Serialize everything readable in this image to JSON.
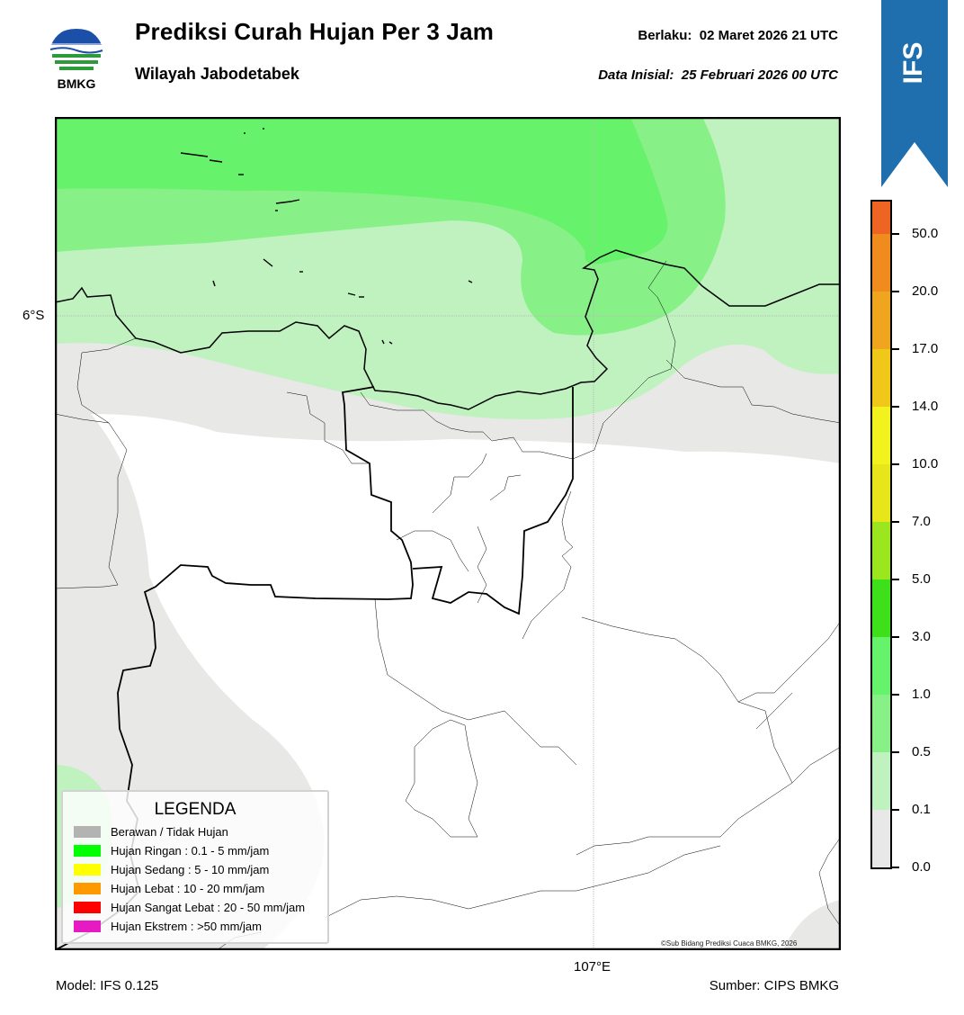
{
  "header": {
    "logo_text": "BMKG",
    "title": "Prediksi Curah Hujan Per 3 Jam",
    "subtitle": "Wilayah Jabodetabek",
    "valid_label": "Berlaku:",
    "valid_value": "02 Maret 2026 21 UTC",
    "init_label": "Data Inisial:",
    "init_value": "25 Februari 2026 00 UTC",
    "ribbon_text": "IFS"
  },
  "map": {
    "lat_label": "6°S",
    "lon_label": "107°E",
    "copyright": "©Sub Bidang Prediksi Cuaca BMKG, 2026"
  },
  "legend": {
    "title": "LEGENDA",
    "items": [
      {
        "label": "Berawan / Tidak Hujan",
        "color": "#b3b3b3"
      },
      {
        "label": "Hujan Ringan : 0.1 - 5 mm/jam",
        "color": "#00ff00"
      },
      {
        "label": "Hujan Sedang : 5 - 10 mm/jam",
        "color": "#ffff00"
      },
      {
        "label": "Hujan Lebat : 10 - 20 mm/jam",
        "color": "#ff9900"
      },
      {
        "label": "Hujan Sangat Lebat : 20 - 50 mm/jam",
        "color": "#ff0000"
      },
      {
        "label": "Hujan Ekstrem : >50 mm/jam",
        "color": "#e619c3"
      }
    ]
  },
  "colorbar": {
    "ticks": [
      "0.0",
      "0.1",
      "0.5",
      "1.0",
      "3.0",
      "5.0",
      "7.0",
      "10.0",
      "14.0",
      "17.0",
      "20.0",
      "50.0"
    ],
    "colors": [
      "#e8e8e8",
      "#bff2bf",
      "#87f087",
      "#67f26b",
      "#3ee01a",
      "#9be61e",
      "#e6e61a",
      "#f2f21e",
      "#f0c81a",
      "#f0a51e",
      "#f08c1e",
      "#ee6422",
      "#e61e1e",
      "#e619c3"
    ]
  },
  "footer": {
    "model": "Model: IFS 0.125",
    "source": "Sumber: CIPS BMKG"
  }
}
